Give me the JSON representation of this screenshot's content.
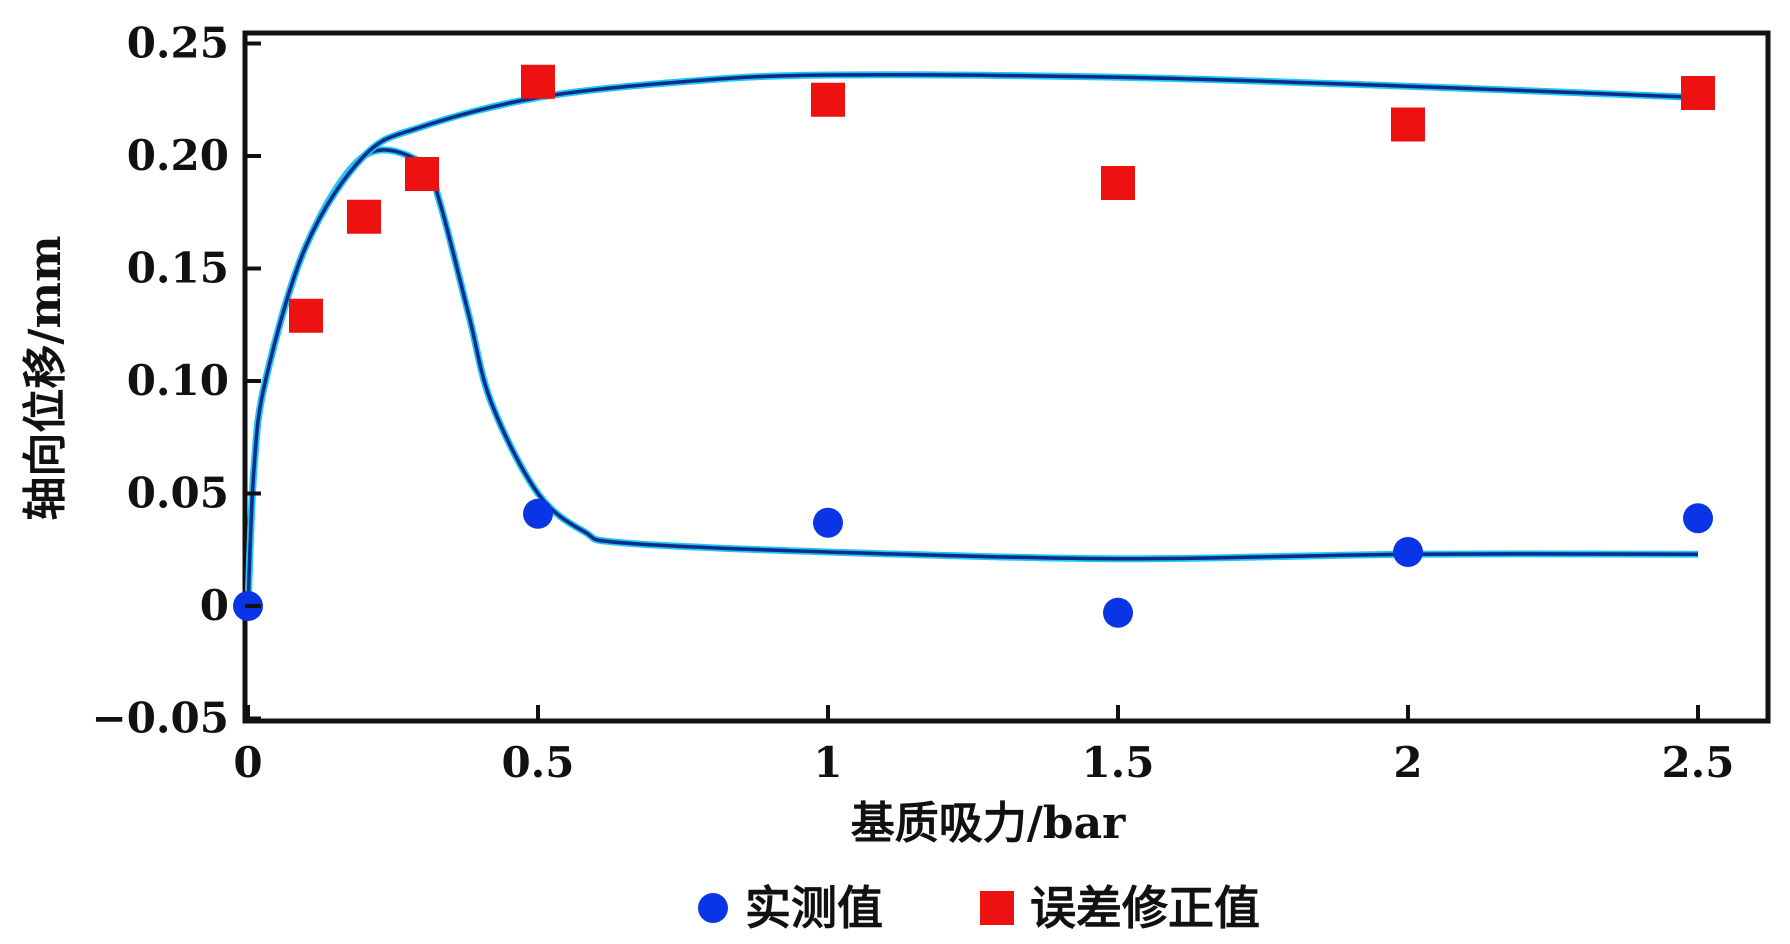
{
  "chart_data": {
    "type": "scatter",
    "xlabel": "基质吸力/bar",
    "ylabel": "轴向位移/mm",
    "xlim": [
      0,
      2.6
    ],
    "ylim": [
      -0.05,
      0.25
    ],
    "xticks": [
      {
        "value": 0,
        "label": "0"
      },
      {
        "value": 0.5,
        "label": "0.5"
      },
      {
        "value": 1,
        "label": "1"
      },
      {
        "value": 1.5,
        "label": "1.5"
      },
      {
        "value": 2,
        "label": "2"
      },
      {
        "value": 2.5,
        "label": "2.5"
      }
    ],
    "yticks": [
      {
        "value": 0.25,
        "label": "0.25"
      },
      {
        "value": 0.2,
        "label": "0.20"
      },
      {
        "value": 0.15,
        "label": "0.15"
      },
      {
        "value": 0.1,
        "label": "0.10"
      },
      {
        "value": 0.05,
        "label": "0.05"
      },
      {
        "value": 0,
        "label": "0"
      },
      {
        "value": -0.05,
        "label": "−0.05"
      }
    ],
    "grid": false,
    "legend_position": "bottom",
    "series": [
      {
        "name": "实测值",
        "marker": "circle",
        "color": "#0a35e6",
        "points": [
          {
            "x": 0,
            "y": 0.0
          },
          {
            "x": 0.5,
            "y": 0.041
          },
          {
            "x": 1,
            "y": 0.037
          },
          {
            "x": 1.5,
            "y": -0.003
          },
          {
            "x": 2,
            "y": 0.024
          },
          {
            "x": 2.5,
            "y": 0.039
          }
        ],
        "fit_curve": {
          "color": "#0d2a8c",
          "points": [
            {
              "x": 0,
              "y": 0.0
            },
            {
              "x": 0.01,
              "y": 0.06
            },
            {
              "x": 0.03,
              "y": 0.1
            },
            {
              "x": 0.1,
              "y": 0.16
            },
            {
              "x": 0.2,
              "y": 0.2
            },
            {
              "x": 0.3,
              "y": 0.197
            },
            {
              "x": 0.33,
              "y": 0.18
            },
            {
              "x": 0.38,
              "y": 0.13
            },
            {
              "x": 0.42,
              "y": 0.09
            },
            {
              "x": 0.5,
              "y": 0.05
            },
            {
              "x": 0.58,
              "y": 0.033
            },
            {
              "x": 0.65,
              "y": 0.028
            },
            {
              "x": 1.0,
              "y": 0.024
            },
            {
              "x": 1.5,
              "y": 0.021
            },
            {
              "x": 2.0,
              "y": 0.023
            },
            {
              "x": 2.5,
              "y": 0.023
            }
          ]
        }
      },
      {
        "name": "误差修正值",
        "marker": "square",
        "color": "#ee1111",
        "points": [
          {
            "x": 0.1,
            "y": 0.129
          },
          {
            "x": 0.2,
            "y": 0.173
          },
          {
            "x": 0.3,
            "y": 0.192
          },
          {
            "x": 0.5,
            "y": 0.233
          },
          {
            "x": 1,
            "y": 0.225
          },
          {
            "x": 1.5,
            "y": 0.188
          },
          {
            "x": 2,
            "y": 0.214
          },
          {
            "x": 2.5,
            "y": 0.228
          }
        ],
        "fit_curve": {
          "color": "#0d2a8c",
          "points": [
            {
              "x": 0,
              "y": 0.0
            },
            {
              "x": 0.01,
              "y": 0.06
            },
            {
              "x": 0.03,
              "y": 0.1
            },
            {
              "x": 0.1,
              "y": 0.16
            },
            {
              "x": 0.2,
              "y": 0.2
            },
            {
              "x": 0.3,
              "y": 0.213
            },
            {
              "x": 0.5,
              "y": 0.226
            },
            {
              "x": 0.75,
              "y": 0.233
            },
            {
              "x": 1.0,
              "y": 0.236
            },
            {
              "x": 1.5,
              "y": 0.235
            },
            {
              "x": 2.0,
              "y": 0.231
            },
            {
              "x": 2.5,
              "y": 0.226
            }
          ]
        }
      }
    ]
  }
}
